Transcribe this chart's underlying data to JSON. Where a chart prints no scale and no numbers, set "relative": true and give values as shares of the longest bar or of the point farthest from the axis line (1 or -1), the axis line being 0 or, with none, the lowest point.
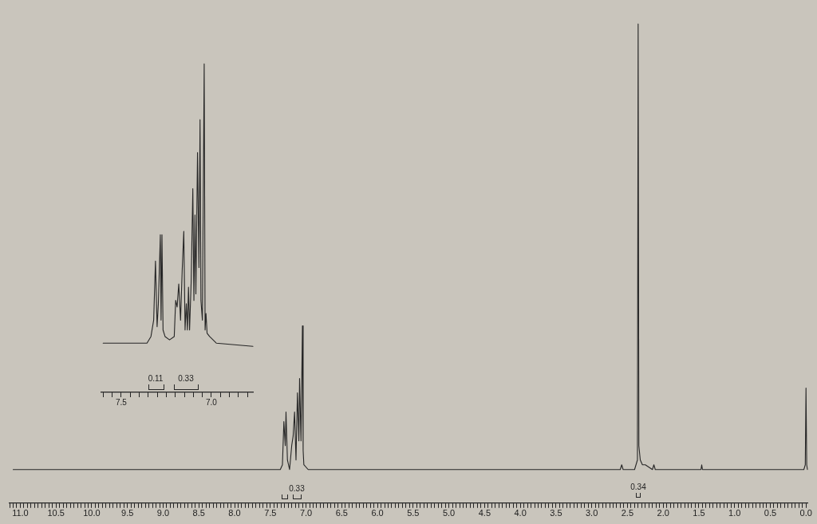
{
  "chart_data": [
    {
      "type": "line",
      "relative": true,
      "marker": "none",
      "grid": false,
      "color": "#262626",
      "x": [
        11.1,
        9.0,
        7.5,
        7.36,
        7.33,
        7.31,
        7.29,
        7.28,
        7.26,
        7.23,
        7.2,
        7.18,
        7.16,
        7.14,
        7.12,
        7.1,
        7.09,
        7.07,
        7.05,
        7.04,
        7.03,
        6.97,
        5.0,
        3.0,
        2.6,
        2.58,
        2.56,
        2.4,
        2.36,
        2.35,
        2.34,
        2.32,
        2.29,
        2.25,
        2.15,
        2.13,
        2.11,
        1.47,
        1.46,
        1.45,
        0.03,
        0.01,
        0.0,
        -0.01,
        -0.02
      ],
      "values": [
        0.07,
        0.07,
        0.07,
        0.07,
        0.08,
        0.17,
        0.12,
        0.19,
        0.09,
        0.07,
        0.12,
        0.14,
        0.19,
        0.09,
        0.23,
        0.13,
        0.26,
        0.13,
        0.37,
        0.11,
        0.08,
        0.07,
        0.07,
        0.07,
        0.07,
        0.08,
        0.07,
        0.07,
        0.09,
        1.0,
        0.12,
        0.09,
        0.08,
        0.08,
        0.07,
        0.08,
        0.07,
        0.07,
        0.08,
        0.07,
        0.07,
        0.08,
        0.24,
        0.08,
        0.07
      ],
      "xlim": [
        11.15,
        -0.02
      ],
      "xticks": [
        {
          "value": 11.15,
          "label": null
        },
        {
          "value": 11.1,
          "label": null
        },
        {
          "value": 11.05,
          "label": null
        },
        {
          "value": 11,
          "label": "11.0"
        },
        {
          "value": 10.95,
          "label": null
        },
        {
          "value": 10.9,
          "label": null
        },
        {
          "value": 10.85,
          "label": null
        },
        {
          "value": 10.8,
          "label": null
        },
        {
          "value": 10.75,
          "label": null
        },
        {
          "value": 10.7,
          "label": null
        },
        {
          "value": 10.65,
          "label": null
        },
        {
          "value": 10.6,
          "label": null
        },
        {
          "value": 10.55,
          "label": null
        },
        {
          "value": 10.5,
          "label": "10.5"
        },
        {
          "value": 10.45,
          "label": null
        },
        {
          "value": 10.4,
          "label": null
        },
        {
          "value": 10.35,
          "label": null
        },
        {
          "value": 10.3,
          "label": null
        },
        {
          "value": 10.25,
          "label": null
        },
        {
          "value": 10.2,
          "label": null
        },
        {
          "value": 10.15,
          "label": null
        },
        {
          "value": 10.1,
          "label": null
        },
        {
          "value": 10.05,
          "label": null
        },
        {
          "value": 10,
          "label": "10.0"
        },
        {
          "value": 9.95,
          "label": null
        },
        {
          "value": 9.9,
          "label": null
        },
        {
          "value": 9.85,
          "label": null
        },
        {
          "value": 9.8,
          "label": null
        },
        {
          "value": 9.75,
          "label": null
        },
        {
          "value": 9.7,
          "label": null
        },
        {
          "value": 9.65,
          "label": null
        },
        {
          "value": 9.6,
          "label": null
        },
        {
          "value": 9.55,
          "label": null
        },
        {
          "value": 9.5,
          "label": "9.5"
        },
        {
          "value": 9.45,
          "label": null
        },
        {
          "value": 9.4,
          "label": null
        },
        {
          "value": 9.35,
          "label": null
        },
        {
          "value": 9.3,
          "label": null
        },
        {
          "value": 9.25,
          "label": null
        },
        {
          "value": 9.2,
          "label": null
        },
        {
          "value": 9.15,
          "label": null
        },
        {
          "value": 9.1,
          "label": null
        },
        {
          "value": 9.05,
          "label": null
        },
        {
          "value": 9,
          "label": "9.0"
        },
        {
          "value": 8.95,
          "label": null
        },
        {
          "value": 8.9,
          "label": null
        },
        {
          "value": 8.85,
          "label": null
        },
        {
          "value": 8.8,
          "label": null
        },
        {
          "value": 8.75,
          "label": null
        },
        {
          "value": 8.7,
          "label": null
        },
        {
          "value": 8.65,
          "label": null
        },
        {
          "value": 8.6,
          "label": null
        },
        {
          "value": 8.55,
          "label": null
        },
        {
          "value": 8.5,
          "label": "8.5"
        },
        {
          "value": 8.45,
          "label": null
        },
        {
          "value": 8.4,
          "label": null
        },
        {
          "value": 8.35,
          "label": null
        },
        {
          "value": 8.3,
          "label": null
        },
        {
          "value": 8.25,
          "label": null
        },
        {
          "value": 8.2,
          "label": null
        },
        {
          "value": 8.15,
          "label": null
        },
        {
          "value": 8.1,
          "label": null
        },
        {
          "value": 8.05,
          "label": null
        },
        {
          "value": 8,
          "label": "8.0"
        },
        {
          "value": 7.95,
          "label": null
        },
        {
          "value": 7.9,
          "label": null
        },
        {
          "value": 7.85,
          "label": null
        },
        {
          "value": 7.8,
          "label": null
        },
        {
          "value": 7.75,
          "label": null
        },
        {
          "value": 7.7,
          "label": null
        },
        {
          "value": 7.65,
          "label": null
        },
        {
          "value": 7.6,
          "label": null
        },
        {
          "value": 7.55,
          "label": null
        },
        {
          "value": 7.5,
          "label": "7.5"
        },
        {
          "value": 7.45,
          "label": null
        },
        {
          "value": 7.4,
          "label": null
        },
        {
          "value": 7.35,
          "label": null
        },
        {
          "value": 7.3,
          "label": null
        },
        {
          "value": 7.25,
          "label": null
        },
        {
          "value": 7.2,
          "label": null
        },
        {
          "value": 7.15,
          "label": null
        },
        {
          "value": 7.1,
          "label": null
        },
        {
          "value": 7.05,
          "label": null
        },
        {
          "value": 7,
          "label": "7.0"
        },
        {
          "value": 6.95,
          "label": null
        },
        {
          "value": 6.9,
          "label": null
        },
        {
          "value": 6.85,
          "label": null
        },
        {
          "value": 6.8,
          "label": null
        },
        {
          "value": 6.75,
          "label": null
        },
        {
          "value": 6.7,
          "label": null
        },
        {
          "value": 6.65,
          "label": null
        },
        {
          "value": 6.6,
          "label": null
        },
        {
          "value": 6.55,
          "label": null
        },
        {
          "value": 6.5,
          "label": "6.5"
        },
        {
          "value": 6.45,
          "label": null
        },
        {
          "value": 6.4,
          "label": null
        },
        {
          "value": 6.35,
          "label": null
        },
        {
          "value": 6.3,
          "label": null
        },
        {
          "value": 6.25,
          "label": null
        },
        {
          "value": 6.2,
          "label": null
        },
        {
          "value": 6.15,
          "label": null
        },
        {
          "value": 6.1,
          "label": null
        },
        {
          "value": 6.05,
          "label": null
        },
        {
          "value": 6,
          "label": "6.0"
        },
        {
          "value": 5.95,
          "label": null
        },
        {
          "value": 5.9,
          "label": null
        },
        {
          "value": 5.85,
          "label": null
        },
        {
          "value": 5.8,
          "label": null
        },
        {
          "value": 5.75,
          "label": null
        },
        {
          "value": 5.7,
          "label": null
        },
        {
          "value": 5.65,
          "label": null
        },
        {
          "value": 5.6,
          "label": null
        },
        {
          "value": 5.55,
          "label": null
        },
        {
          "value": 5.5,
          "label": "5.5"
        },
        {
          "value": 5.45,
          "label": null
        },
        {
          "value": 5.4,
          "label": null
        },
        {
          "value": 5.35,
          "label": null
        },
        {
          "value": 5.3,
          "label": null
        },
        {
          "value": 5.25,
          "label": null
        },
        {
          "value": 5.2,
          "label": null
        },
        {
          "value": 5.15,
          "label": null
        },
        {
          "value": 5.1,
          "label": null
        },
        {
          "value": 5.05,
          "label": null
        },
        {
          "value": 5,
          "label": "5.0"
        },
        {
          "value": 4.95,
          "label": null
        },
        {
          "value": 4.9,
          "label": null
        },
        {
          "value": 4.85,
          "label": null
        },
        {
          "value": 4.8,
          "label": null
        },
        {
          "value": 4.75,
          "label": null
        },
        {
          "value": 4.7,
          "label": null
        },
        {
          "value": 4.65,
          "label": null
        },
        {
          "value": 4.6,
          "label": null
        },
        {
          "value": 4.55,
          "label": null
        },
        {
          "value": 4.5,
          "label": "4.5"
        },
        {
          "value": 4.45,
          "label": null
        },
        {
          "value": 4.4,
          "label": null
        },
        {
          "value": 4.35,
          "label": null
        },
        {
          "value": 4.3,
          "label": null
        },
        {
          "value": 4.25,
          "label": null
        },
        {
          "value": 4.2,
          "label": null
        },
        {
          "value": 4.15,
          "label": null
        },
        {
          "value": 4.1,
          "label": null
        },
        {
          "value": 4.05,
          "label": null
        },
        {
          "value": 4,
          "label": "4.0"
        },
        {
          "value": 3.95,
          "label": null
        },
        {
          "value": 3.9,
          "label": null
        },
        {
          "value": 3.85,
          "label": null
        },
        {
          "value": 3.8,
          "label": null
        },
        {
          "value": 3.75,
          "label": null
        },
        {
          "value": 3.7,
          "label": null
        },
        {
          "value": 3.65,
          "label": null
        },
        {
          "value": 3.6,
          "label": null
        },
        {
          "value": 3.55,
          "label": null
        },
        {
          "value": 3.5,
          "label": "3.5"
        },
        {
          "value": 3.45,
          "label": null
        },
        {
          "value": 3.4,
          "label": null
        },
        {
          "value": 3.35,
          "label": null
        },
        {
          "value": 3.3,
          "label": null
        },
        {
          "value": 3.25,
          "label": null
        },
        {
          "value": 3.2,
          "label": null
        },
        {
          "value": 3.15,
          "label": null
        },
        {
          "value": 3.1,
          "label": null
        },
        {
          "value": 3.05,
          "label": null
        },
        {
          "value": 3,
          "label": "3.0"
        },
        {
          "value": 2.95,
          "label": null
        },
        {
          "value": 2.9,
          "label": null
        },
        {
          "value": 2.85,
          "label": null
        },
        {
          "value": 2.8,
          "label": null
        },
        {
          "value": 2.75,
          "label": null
        },
        {
          "value": 2.7,
          "label": null
        },
        {
          "value": 2.65,
          "label": null
        },
        {
          "value": 2.6,
          "label": null
        },
        {
          "value": 2.55,
          "label": null
        },
        {
          "value": 2.5,
          "label": "2.5"
        },
        {
          "value": 2.45,
          "label": null
        },
        {
          "value": 2.4,
          "label": null
        },
        {
          "value": 2.35,
          "label": null
        },
        {
          "value": 2.3,
          "label": null
        },
        {
          "value": 2.25,
          "label": null
        },
        {
          "value": 2.2,
          "label": null
        },
        {
          "value": 2.15,
          "label": null
        },
        {
          "value": 2.1,
          "label": null
        },
        {
          "value": 2.05,
          "label": null
        },
        {
          "value": 2,
          "label": "2.0"
        },
        {
          "value": 1.95,
          "label": null
        },
        {
          "value": 1.9,
          "label": null
        },
        {
          "value": 1.85,
          "label": null
        },
        {
          "value": 1.8,
          "label": null
        },
        {
          "value": 1.75,
          "label": null
        },
        {
          "value": 1.7,
          "label": null
        },
        {
          "value": 1.65,
          "label": null
        },
        {
          "value": 1.6,
          "label": null
        },
        {
          "value": 1.55,
          "label": null
        },
        {
          "value": 1.5,
          "label": "1.5"
        },
        {
          "value": 1.45,
          "label": null
        },
        {
          "value": 1.4,
          "label": null
        },
        {
          "value": 1.35,
          "label": null
        },
        {
          "value": 1.3,
          "label": null
        },
        {
          "value": 1.25,
          "label": null
        },
        {
          "value": 1.2,
          "label": null
        },
        {
          "value": 1.15,
          "label": null
        },
        {
          "value": 1.1,
          "label": null
        },
        {
          "value": 1.05,
          "label": null
        },
        {
          "value": 1,
          "label": "1.0"
        },
        {
          "value": 0.95,
          "label": null
        },
        {
          "value": 0.9,
          "label": null
        },
        {
          "value": 0.85,
          "label": null
        },
        {
          "value": 0.8,
          "label": null
        },
        {
          "value": 0.75,
          "label": null
        },
        {
          "value": 0.7,
          "label": null
        },
        {
          "value": 0.65,
          "label": null
        },
        {
          "value": 0.6,
          "label": null
        },
        {
          "value": 0.55,
          "label": null
        },
        {
          "value": 0.5,
          "label": "0.5"
        },
        {
          "value": 0.45,
          "label": null
        },
        {
          "value": 0.4,
          "label": null
        },
        {
          "value": 0.35,
          "label": null
        },
        {
          "value": 0.3,
          "label": null
        },
        {
          "value": 0.25,
          "label": null
        },
        {
          "value": 0.2,
          "label": null
        },
        {
          "value": 0.15,
          "label": null
        },
        {
          "value": 0.1,
          "label": null
        },
        {
          "value": 0.05,
          "label": null
        },
        {
          "value": 0,
          "label": "0.0"
        }
      ],
      "annotations": [
        "0.33",
        "0.34"
      ]
    },
    {
      "type": "line",
      "relative": true,
      "marker": "none",
      "grid": false,
      "color": "#262626",
      "x": [
        7.6,
        7.357,
        7.335,
        7.32,
        7.31,
        7.301,
        7.294,
        7.283,
        7.279,
        7.274,
        7.268,
        7.257,
        7.232,
        7.206,
        7.198,
        7.19,
        7.181,
        7.171,
        7.162,
        7.153,
        7.146,
        7.139,
        7.133,
        7.127,
        7.121,
        7.112,
        7.103,
        7.097,
        7.091,
        7.086,
        7.077,
        7.069,
        7.063,
        7.058,
        7.05,
        7.04,
        7.035,
        7.03,
        7.024,
        7.01,
        6.973,
        6.77
      ],
      "values": [
        0.15,
        0.15,
        0.17,
        0.22,
        0.4,
        0.2,
        0.27,
        0.48,
        0.22,
        0.48,
        0.19,
        0.17,
        0.16,
        0.17,
        0.28,
        0.26,
        0.33,
        0.22,
        0.37,
        0.49,
        0.19,
        0.27,
        0.19,
        0.32,
        0.19,
        0.34,
        0.62,
        0.28,
        0.54,
        0.3,
        0.73,
        0.38,
        0.83,
        0.28,
        0.22,
        1.0,
        0.19,
        0.24,
        0.18,
        0.17,
        0.15,
        0.14
      ],
      "xlim": [
        7.61,
        6.77
      ],
      "xticks": [
        {
          "value": 7.6,
          "label": null
        },
        {
          "value": 7.55,
          "label": null
        },
        {
          "value": 7.5,
          "label": "7.5"
        },
        {
          "value": 7.45,
          "label": null
        },
        {
          "value": 7.4,
          "label": null
        },
        {
          "value": 7.35,
          "label": null
        },
        {
          "value": 7.3,
          "label": null
        },
        {
          "value": 7.25,
          "label": null
        },
        {
          "value": 7.2,
          "label": null
        },
        {
          "value": 7.15,
          "label": null
        },
        {
          "value": 7.1,
          "label": null
        },
        {
          "value": 7.05,
          "label": null
        },
        {
          "value": 7,
          "label": "7.0"
        },
        {
          "value": 6.95,
          "label": null
        },
        {
          "value": 6.9,
          "label": null
        },
        {
          "value": 6.85,
          "label": null
        },
        {
          "value": 6.8,
          "label": null
        }
      ],
      "annotations": [
        "0.11",
        "0.33"
      ]
    }
  ]
}
